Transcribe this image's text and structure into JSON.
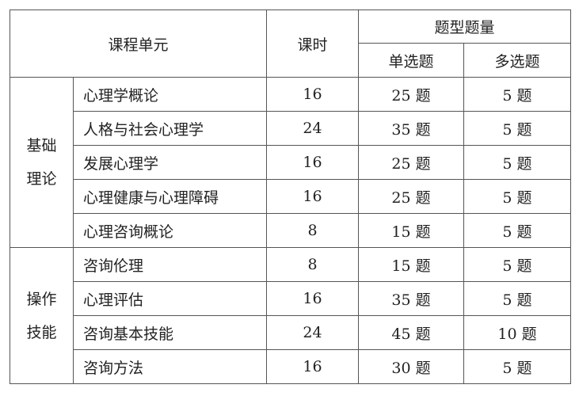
{
  "header": {
    "unit": "课程单元",
    "hours": "课时",
    "question_types": "题型题量",
    "single_choice": "单选题",
    "multi_choice": "多选题"
  },
  "groups": [
    {
      "label_line1": "基础",
      "label_line2": "理论",
      "rows": [
        {
          "name": "心理学概论",
          "hours": "16",
          "single": "25 题",
          "multi": "5 题"
        },
        {
          "name": "人格与社会心理学",
          "hours": "24",
          "single": "35 题",
          "multi": "5 题"
        },
        {
          "name": "发展心理学",
          "hours": "16",
          "single": "25 题",
          "multi": "5 题"
        },
        {
          "name": "心理健康与心理障碍",
          "hours": "16",
          "single": "25 题",
          "multi": "5 题"
        },
        {
          "name": "心理咨询概论",
          "hours": "8",
          "single": "15 题",
          "multi": "5 题"
        }
      ]
    },
    {
      "label_line1": "操作",
      "label_line2": "技能",
      "rows": [
        {
          "name": "咨询伦理",
          "hours": "8",
          "single": "15 题",
          "multi": "5 题"
        },
        {
          "name": "心理评估",
          "hours": "16",
          "single": "35 题",
          "multi": "5 题"
        },
        {
          "name": "咨询基本技能",
          "hours": "24",
          "single": "45 题",
          "multi": "10 题"
        },
        {
          "name": "咨询方法",
          "hours": "16",
          "single": "30 题",
          "multi": "5 题"
        }
      ]
    }
  ]
}
